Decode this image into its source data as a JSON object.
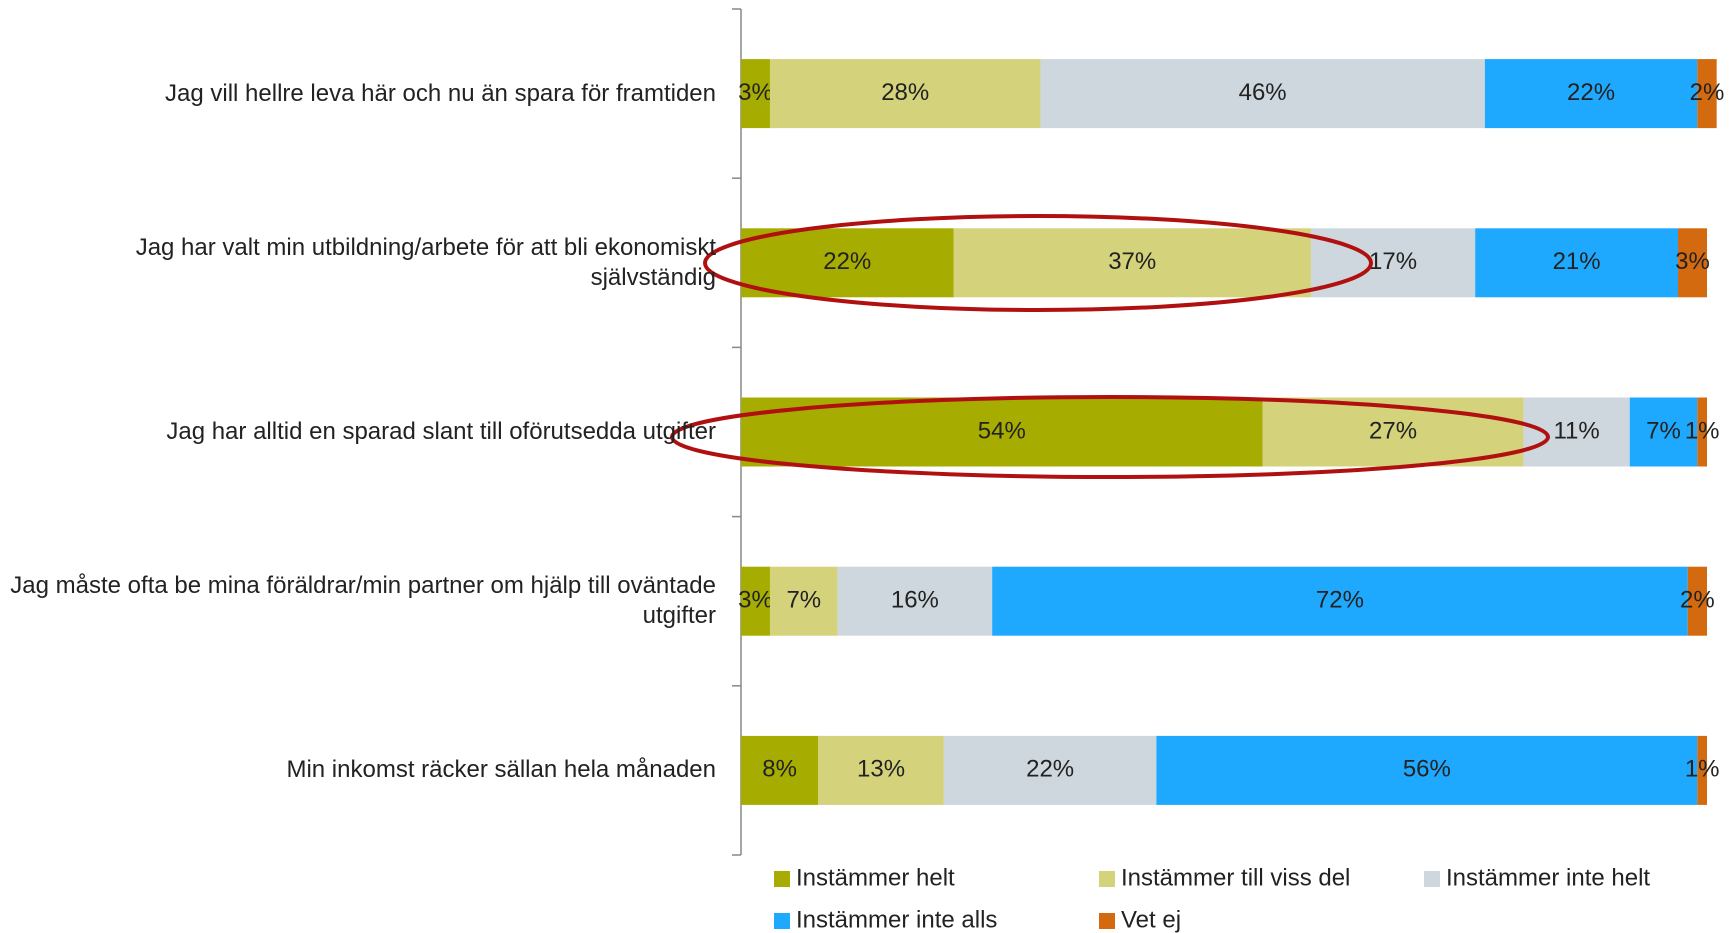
{
  "chart_data": {
    "type": "stacked_barh",
    "categories": [
      "Jag vill hellre leva här och nu än spara för framtiden",
      "Jag har valt min utbildning/arbete för att bli ekonomiskt självständig",
      "Jag har alltid en sparad slant till oförutsedda utgifter",
      "Jag måste ofta be mina föräldrar/min partner om hjälp till oväntade utgifter",
      "Min inkomst räcker sällan hela månaden"
    ],
    "xlim": [
      0,
      100
    ],
    "series": [
      {
        "name": "Instämmer helt",
        "color": "#a6ad00",
        "values": [
          3,
          22,
          54,
          3,
          8
        ],
        "value_labels": [
          "3%",
          "22%",
          "54%",
          "3%",
          "8%"
        ]
      },
      {
        "name": "Instämmer till viss del",
        "color": "#d4d27a",
        "values": [
          28,
          37,
          27,
          7,
          13
        ],
        "value_labels": [
          "28%",
          "37%",
          "27%",
          "7%",
          "13%"
        ]
      },
      {
        "name": "Instämmer inte helt",
        "color": "#cdd7dd",
        "values": [
          46,
          17,
          11,
          16,
          22
        ],
        "value_labels": [
          "46%",
          "17%",
          "11%",
          "16%",
          "22%"
        ]
      },
      {
        "name": "Instämmer inte alls",
        "color": "#1fa9fe",
        "values": [
          22,
          21,
          7,
          72,
          56
        ],
        "value_labels": [
          "22%",
          "21%",
          "7%",
          "72%",
          "56%"
        ]
      },
      {
        "name": "Vet ej",
        "color": "#d46a10",
        "values": [
          2,
          3,
          1,
          2,
          1
        ],
        "value_labels": [
          "2%",
          "3%",
          "1%",
          "2%",
          "1%"
        ]
      }
    ],
    "legend": "bottom"
  }
}
